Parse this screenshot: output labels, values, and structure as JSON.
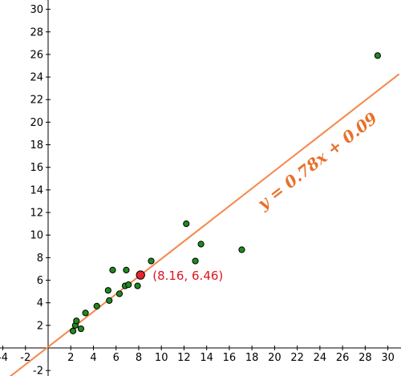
{
  "chart_data": {
    "type": "scatter",
    "title": "",
    "xlabel": "",
    "ylabel": "",
    "xlim": [
      -4,
      31
    ],
    "ylim": [
      -2,
      31
    ],
    "grid": false,
    "x_ticks": [
      -4,
      -2,
      2,
      4,
      6,
      8,
      10,
      12,
      14,
      16,
      18,
      20,
      22,
      24,
      26,
      28,
      30
    ],
    "y_ticks": [
      -2,
      2,
      4,
      6,
      8,
      10,
      12,
      14,
      16,
      18,
      20,
      22,
      24,
      26,
      28,
      30
    ],
    "points": [
      {
        "x": 2.2,
        "y": 1.5
      },
      {
        "x": 2.4,
        "y": 2.0
      },
      {
        "x": 2.5,
        "y": 2.4
      },
      {
        "x": 2.9,
        "y": 1.7
      },
      {
        "x": 3.3,
        "y": 3.1
      },
      {
        "x": 4.3,
        "y": 3.7
      },
      {
        "x": 5.3,
        "y": 5.1
      },
      {
        "x": 5.4,
        "y": 4.2
      },
      {
        "x": 5.7,
        "y": 6.9
      },
      {
        "x": 6.3,
        "y": 4.8
      },
      {
        "x": 6.8,
        "y": 5.5
      },
      {
        "x": 6.9,
        "y": 6.9
      },
      {
        "x": 7.1,
        "y": 5.6
      },
      {
        "x": 7.9,
        "y": 5.5
      },
      {
        "x": 9.1,
        "y": 7.7
      },
      {
        "x": 12.2,
        "y": 11.0
      },
      {
        "x": 13.0,
        "y": 7.7
      },
      {
        "x": 13.5,
        "y": 9.2
      },
      {
        "x": 17.1,
        "y": 8.7
      },
      {
        "x": 29.1,
        "y": 25.9
      }
    ],
    "mean_point": {
      "x": 8.16,
      "y": 6.46,
      "label": "(8.16, 6.46)"
    },
    "regression": {
      "slope": 0.78,
      "intercept": 0.09,
      "label": "y = 0.78x + 0.09"
    },
    "colors": {
      "points": "#1f8a1f",
      "points_outline": "#000000",
      "mean_point": "#e8242a",
      "mean_label": "#e0141e",
      "line": "#f5874a",
      "equation": "#e8702a",
      "axes": "#000000"
    }
  }
}
